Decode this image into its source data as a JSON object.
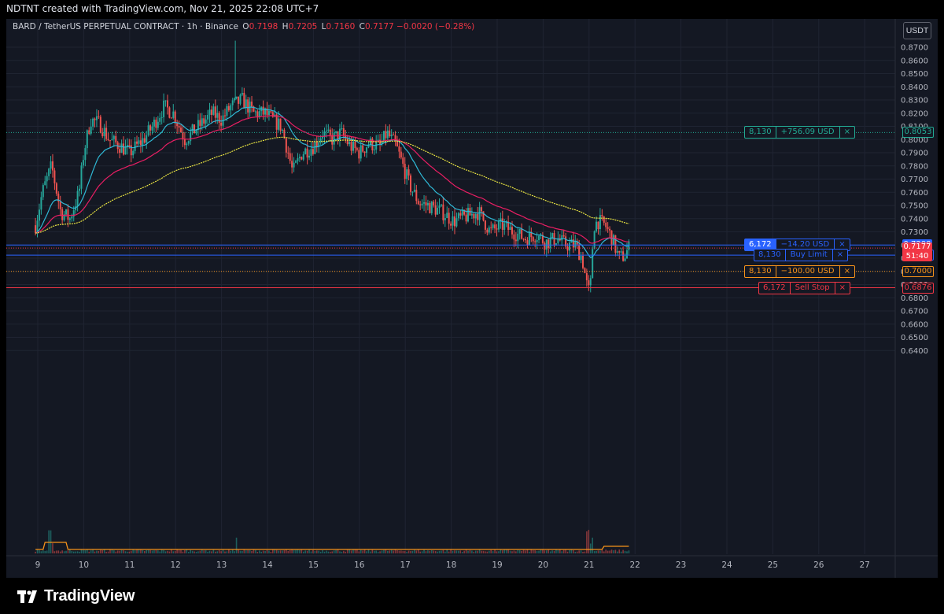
{
  "header": {
    "attribution": "NDTNT created with TradingView.com, Nov 21, 2025 22:08 UTC+7"
  },
  "legend": {
    "symbol": "BARD / TetherUS PERPETUAL CONTRACT · 1h · Binance",
    "open_label": "O",
    "open": "0.7198",
    "high_label": "H",
    "high": "0.7205",
    "low_label": "L",
    "low": "0.7160",
    "close_label": "C",
    "close": "0.7177",
    "change": "−0.0020 (−0.28%)"
  },
  "currency_button": "USDT",
  "price_axis": {
    "ticks": [
      "0.8700",
      "0.8600",
      "0.8500",
      "0.8400",
      "0.8300",
      "0.8200",
      "0.8100",
      "0.8000",
      "0.7900",
      "0.7800",
      "0.7700",
      "0.7600",
      "0.7500",
      "0.7400",
      "0.7300",
      "0.7200",
      "0.7100",
      "0.7000",
      "0.6900",
      "0.6800",
      "0.6700",
      "0.6600",
      "0.6500",
      "0.6400"
    ]
  },
  "time_axis": {
    "ticks": [
      "9",
      "10",
      "11",
      "12",
      "13",
      "14",
      "15",
      "16",
      "17",
      "18",
      "19",
      "20",
      "21",
      "22",
      "23",
      "24",
      "25",
      "26",
      "27"
    ]
  },
  "orders": [
    {
      "id": "take-profit",
      "qty": "8,130",
      "label": "+756.09 USD",
      "close": "×",
      "price_label": "0.8053",
      "color": "#22ab94",
      "price": 0.8053
    },
    {
      "id": "position",
      "qty": "6,172",
      "label": "−14.20 USD",
      "close": "×",
      "price_label": "0.7200",
      "color": "#2962ff",
      "price": 0.72
    },
    {
      "id": "buy-limit",
      "qty": "8,130",
      "label": "Buy Limit",
      "close": "×",
      "price_label": "0.7123",
      "color": "#2962ff",
      "price": 0.7123
    },
    {
      "id": "limit-100",
      "qty": "8,130",
      "label": "−100.00 USD",
      "close": "×",
      "price_label": "0.7000",
      "color": "#f7931a",
      "price": 0.7
    },
    {
      "id": "sell-stop",
      "qty": "6,172",
      "label": "Sell Stop",
      "close": "×",
      "price_label": "0.6876",
      "color": "#f23645",
      "price": 0.6876
    }
  ],
  "last_price": {
    "price": "0.7177",
    "countdown": "51:40",
    "color": "#f23645"
  },
  "colors": {
    "up": "#26a69a",
    "down": "#ef5350",
    "ema_fast": "#2fb9d6",
    "ema_mid": "#e91e63",
    "ema_slow": "#e8e342",
    "volume_ma": "#f7931a"
  },
  "footer": {
    "brand": "TradingView"
  }
}
